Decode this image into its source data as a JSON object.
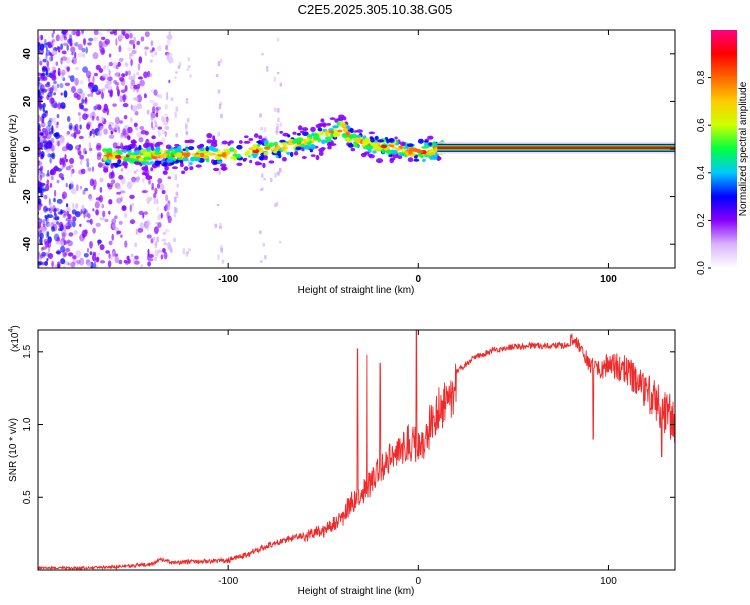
{
  "title": "C2E5.2025.305.10.38.G05",
  "chart_data": [
    {
      "type": "heatmap",
      "name": "spectrogram",
      "xlabel": "Height of straight line (km)",
      "ylabel": "Frequency (Hz)",
      "xlim": [
        -200,
        135
      ],
      "ylim": [
        -50,
        50
      ],
      "xticks": [
        -100,
        0,
        100
      ],
      "xtick_labels": [
        "-100",
        "0",
        "100"
      ],
      "yticks": [
        -40,
        -20,
        0,
        20,
        40
      ],
      "ytick_labels": [
        "-40",
        "-20",
        "0",
        "20",
        "40"
      ],
      "ridge": {
        "x": [
          -160,
          -150,
          -140,
          -130,
          -120,
          -110,
          -100,
          -90,
          -80,
          -70,
          -60,
          -50,
          -45,
          -40,
          -35,
          -30,
          -25,
          -20,
          -15,
          -10,
          -5,
          0,
          5,
          10,
          20,
          40,
          60,
          80,
          100,
          120,
          135
        ],
        "y": [
          -3,
          -3,
          -3,
          -2.5,
          -2.5,
          -2,
          -2,
          -1,
          0,
          1,
          3,
          5,
          7,
          9,
          4,
          3,
          2,
          1,
          1,
          0,
          -1,
          -1,
          -1,
          0,
          0.5,
          0.5,
          0.5,
          0.5,
          0.5,
          0.5,
          0.5
        ]
      },
      "colorbar": {
        "label": "Normalized spectral amplitude",
        "range": [
          0,
          1
        ],
        "ticks": [
          0.0,
          0.2,
          0.4,
          0.6,
          0.8
        ],
        "tick_labels": [
          "0.0",
          "0.2",
          "0.4",
          "0.6",
          "0.8"
        ],
        "colors": [
          "#ffffff",
          "#d9b3ff",
          "#8800ff",
          "#0000ff",
          "#00c8ff",
          "#00ff40",
          "#ccff00",
          "#ffcc00",
          "#ff6600",
          "#ff0000",
          "#ff0080"
        ]
      }
    },
    {
      "type": "line",
      "name": "snr",
      "xlabel": "Height of straight line (km)",
      "ylabel": "SNR (10 * v/v)",
      "y_multiplier_label": "(x10",
      "y_multiplier_exp": "4",
      "y_multiplier_close": ")",
      "xlim": [
        -200,
        135
      ],
      "ylim": [
        0,
        1.65
      ],
      "xticks": [
        -100,
        0,
        100
      ],
      "xtick_labels": [
        "-100",
        "0",
        "100"
      ],
      "yticks": [
        0.5,
        1.0,
        1.5
      ],
      "ytick_labels": [
        "0.5",
        "1.0",
        "1.5"
      ],
      "line_color": "#ee2a2a",
      "envelope": {
        "x": [
          -200,
          -180,
          -160,
          -140,
          -135,
          -130,
          -120,
          -100,
          -90,
          -80,
          -70,
          -60,
          -50,
          -40,
          -35,
          -30,
          -25,
          -20,
          -15,
          -10,
          -5,
          0,
          5,
          10,
          15,
          20,
          30,
          40,
          50,
          60,
          70,
          80,
          85,
          90,
          95,
          100,
          110,
          120,
          130,
          135
        ],
        "y": [
          0.02,
          0.02,
          0.03,
          0.05,
          0.09,
          0.06,
          0.07,
          0.08,
          0.12,
          0.18,
          0.22,
          0.26,
          0.32,
          0.42,
          0.52,
          0.6,
          0.68,
          0.78,
          0.86,
          0.94,
          1.0,
          0.95,
          1.08,
          1.2,
          1.3,
          1.38,
          1.48,
          1.53,
          1.55,
          1.56,
          1.56,
          1.56,
          1.5,
          1.4,
          1.35,
          1.42,
          1.4,
          1.28,
          1.15,
          1.12
        ]
      },
      "spikes": [
        {
          "x": -32,
          "y": 1.52
        },
        {
          "x": -27,
          "y": 1.48
        },
        {
          "x": -20,
          "y": 1.42
        },
        {
          "x": -1,
          "y": 1.65
        },
        {
          "x": 92,
          "y": 0.9
        },
        {
          "x": 128,
          "y": 0.78
        }
      ]
    }
  ]
}
